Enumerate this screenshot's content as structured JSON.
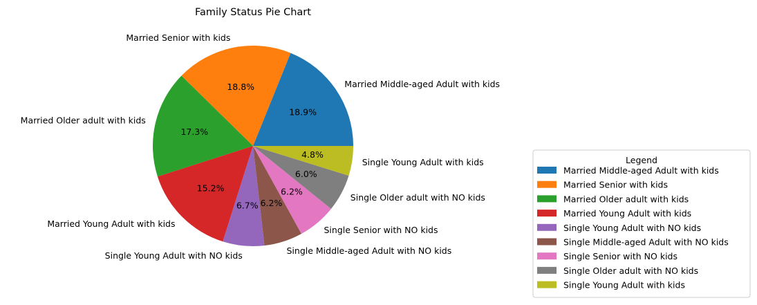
{
  "chart_data": {
    "type": "pie",
    "title": "Family Status Pie Chart",
    "categories": [
      "Married Middle-aged Adult with kids",
      "Married Senior with kids",
      "Married Older adult with kids",
      "Married Young Adult with kids",
      "Single Young Adult with NO kids",
      "Single Middle-aged Adult with NO kids",
      "Single Senior with NO kids",
      "Single Older adult with NO kids",
      "Single Young Adult with kids"
    ],
    "values": [
      18.9,
      18.8,
      17.3,
      15.2,
      6.7,
      6.2,
      6.2,
      6.0,
      4.8
    ],
    "value_labels": [
      "18.9%",
      "18.8%",
      "17.3%",
      "15.2%",
      "6.7%",
      "6.2%",
      "6.2%",
      "6.0%",
      "4.8%"
    ],
    "colors": [
      "#1f77b4",
      "#ff7f0e",
      "#2ca02c",
      "#d62728",
      "#9467bd",
      "#8c564b",
      "#e377c2",
      "#7f7f7f",
      "#bcbd22"
    ],
    "start_angle": 0,
    "direction": "counterclockwise",
    "legend": {
      "title": "Legend",
      "placement": "lower-right outside"
    }
  }
}
